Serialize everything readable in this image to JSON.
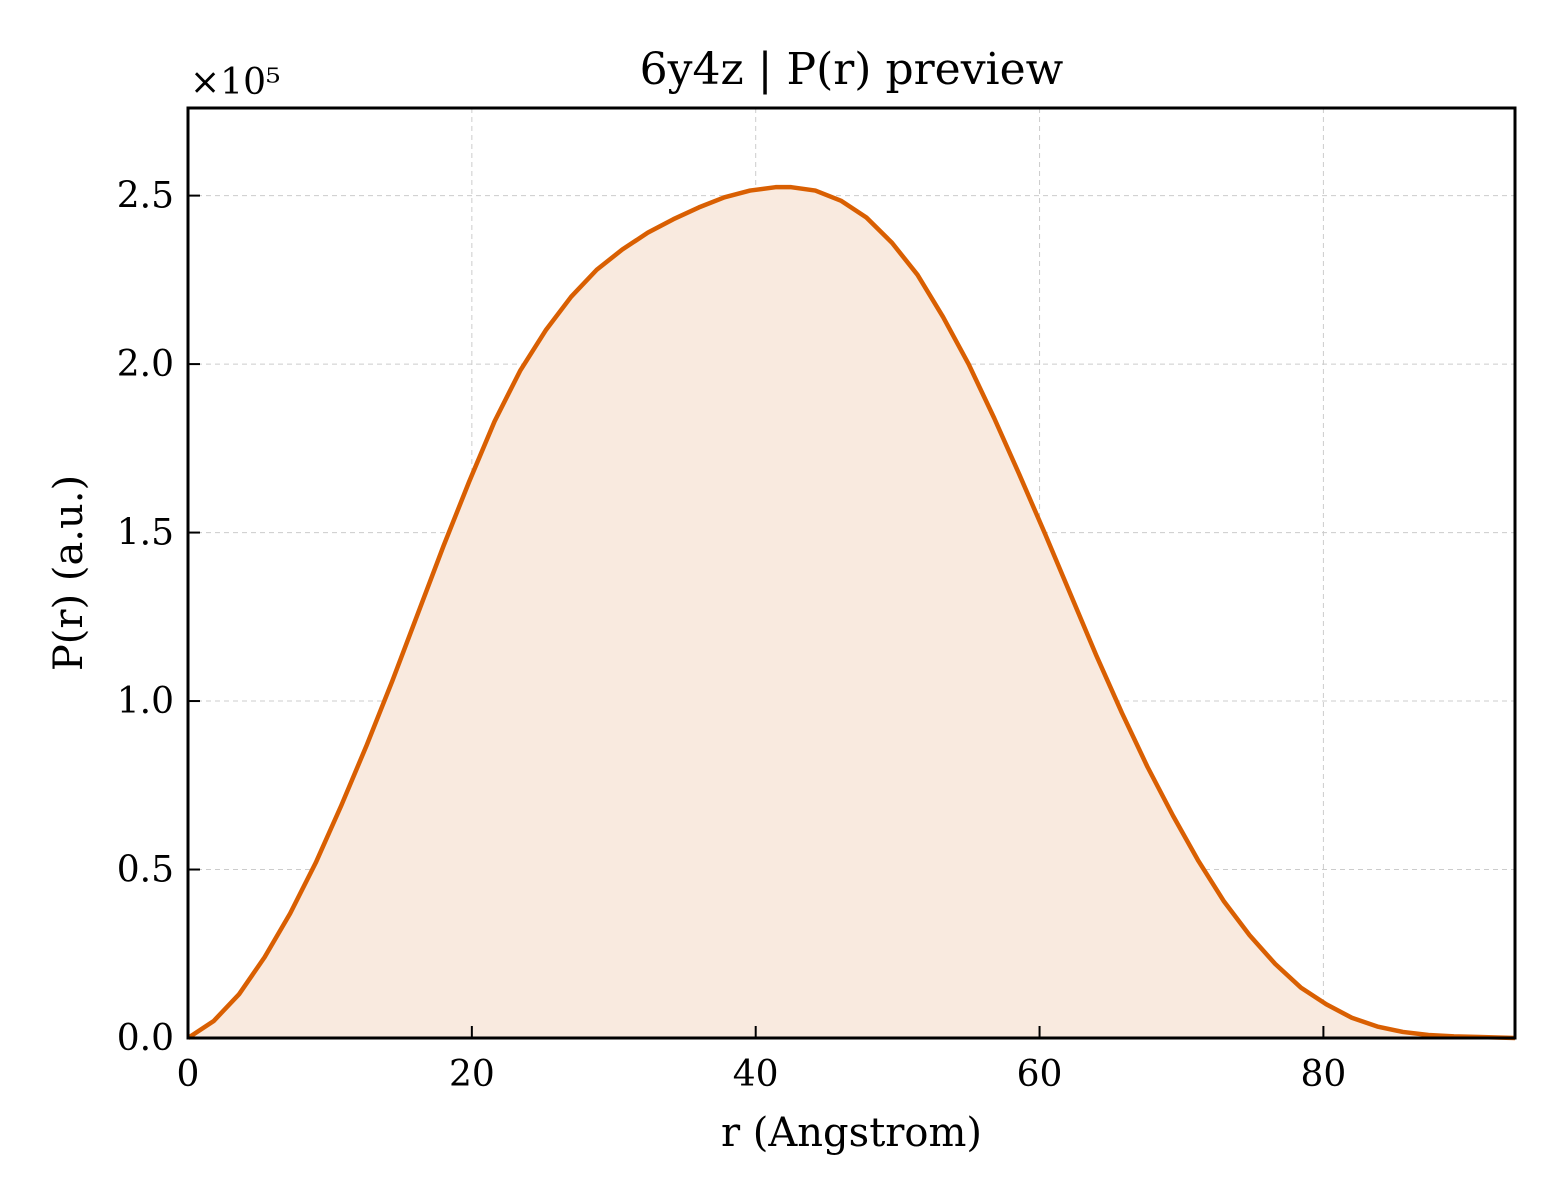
{
  "chart_data": {
    "type": "area",
    "title": "6y4z | P(r) preview",
    "xlabel": "r (Angstrom)",
    "ylabel": "P(r) (a.u.)",
    "y_multiplier_label": "×10⁵",
    "y_scale_factor": 100000,
    "xlim": [
      0,
      93.5
    ],
    "ylim": [
      0,
      276000
    ],
    "x_ticks": [
      0,
      20,
      40,
      60,
      80
    ],
    "x_tick_labels": [
      "0",
      "20",
      "40",
      "60",
      "80"
    ],
    "y_ticks": [
      0,
      50000,
      100000,
      150000,
      200000,
      250000
    ],
    "y_tick_labels": [
      "0.0",
      "0.5",
      "1.0",
      "1.5",
      "2.0",
      "2.5"
    ],
    "grid": true,
    "colors": {
      "line": "#d95f02",
      "fill": "#f9eadf",
      "grid": "#cccccc",
      "frame": "#000000"
    },
    "series": [
      {
        "x": [
          0,
          1.8,
          3.6,
          5.4,
          7.2,
          9,
          10.8,
          12.6,
          14.4,
          16.2,
          18,
          19.8,
          21.6,
          23.4,
          25.2,
          27,
          28.8,
          30.6,
          32.4,
          34.2,
          36,
          37.8,
          39.6,
          41.4,
          42.5,
          44.2,
          46,
          47.8,
          49.6,
          51.4,
          53.2,
          55,
          56.8,
          58.6,
          60.4,
          62.2,
          64,
          65.8,
          67.6,
          69.4,
          71.2,
          73,
          74.8,
          76.6,
          78.4,
          80.2,
          82,
          83.8,
          85.6,
          87.4,
          89.2,
          91,
          93.5
        ],
        "y": [
          0,
          5000,
          13000,
          24000,
          37000,
          52000,
          69000,
          87000,
          106000,
          126000,
          146000,
          165000,
          183000,
          198000,
          210000,
          220000,
          228000,
          234000,
          239000,
          243000,
          246500,
          249500,
          251500,
          252500,
          252500,
          251500,
          248500,
          243500,
          236000,
          226500,
          214000,
          200000,
          184000,
          167000,
          149500,
          131500,
          113500,
          96500,
          80500,
          66000,
          52500,
          40500,
          30500,
          22000,
          15000,
          10000,
          6000,
          3400,
          1800,
          900,
          500,
          300,
          0
        ]
      }
    ]
  }
}
